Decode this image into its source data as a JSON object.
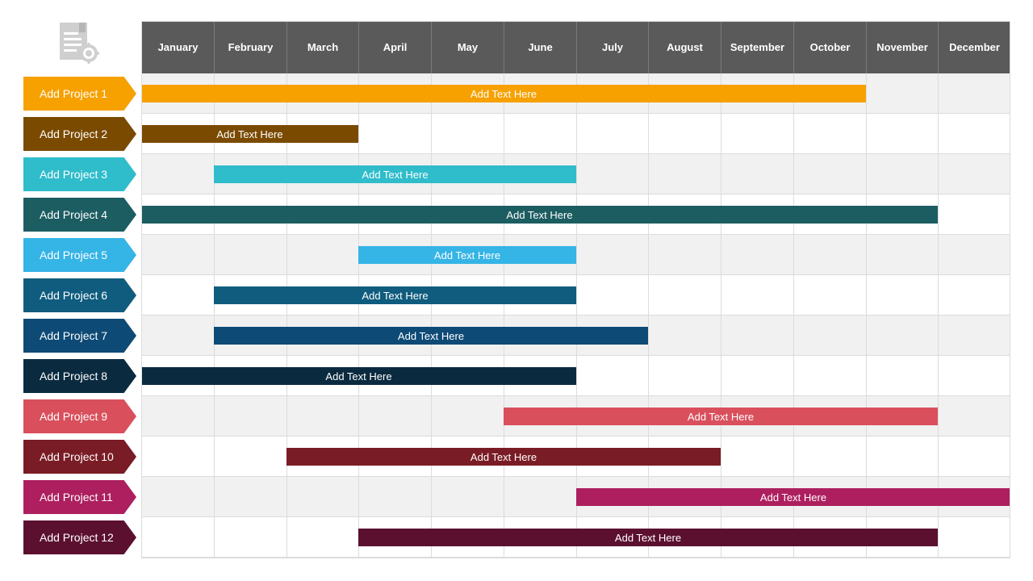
{
  "chart_data": {
    "type": "gantt",
    "categories": [
      "January",
      "February",
      "March",
      "April",
      "May",
      "June",
      "July",
      "August",
      "September",
      "October",
      "November",
      "December"
    ],
    "series": [
      {
        "name": "Add Project 1",
        "start": 0,
        "end": 10,
        "bar_text": "Add Text Here",
        "color": "#f7a100"
      },
      {
        "name": "Add Project 2",
        "start": 0,
        "end": 3,
        "bar_text": "Add Text Here",
        "color": "#7a4a00"
      },
      {
        "name": "Add Project 3",
        "start": 1,
        "end": 6,
        "bar_text": "Add Text Here",
        "color": "#2fbccb"
      },
      {
        "name": "Add Project 4",
        "start": 0,
        "end": 11,
        "bar_text": "Add Text Here",
        "color": "#1c5d62"
      },
      {
        "name": "Add Project 5",
        "start": 3,
        "end": 6,
        "bar_text": "Add Text Here",
        "color": "#35b4e6"
      },
      {
        "name": "Add Project 6",
        "start": 1,
        "end": 6,
        "bar_text": "Add Text Here",
        "color": "#0f5c7e"
      },
      {
        "name": "Add Project 7",
        "start": 1,
        "end": 7,
        "bar_text": "Add Text Here",
        "color": "#0e4a76"
      },
      {
        "name": "Add Project 8",
        "start": 0,
        "end": 6,
        "bar_text": "Add Text Here",
        "color": "#0a2a3f"
      },
      {
        "name": "Add Project 9",
        "start": 5,
        "end": 11,
        "bar_text": "Add Text Here",
        "color": "#d94f5c"
      },
      {
        "name": "Add Project 10",
        "start": 2,
        "end": 8,
        "bar_text": "Add Text Here",
        "color": "#7a1c25"
      },
      {
        "name": "Add Project 11",
        "start": 6,
        "end": 12,
        "bar_text": "Add Text Here",
        "color": "#ad1f5f"
      },
      {
        "name": "Add Project 12",
        "start": 3,
        "end": 11,
        "bar_text": "Add Text Here",
        "color": "#5c1030"
      }
    ],
    "header_color": "#5a5a5a",
    "grid": true
  },
  "icons": {
    "top_left": "document-gear-icon"
  }
}
